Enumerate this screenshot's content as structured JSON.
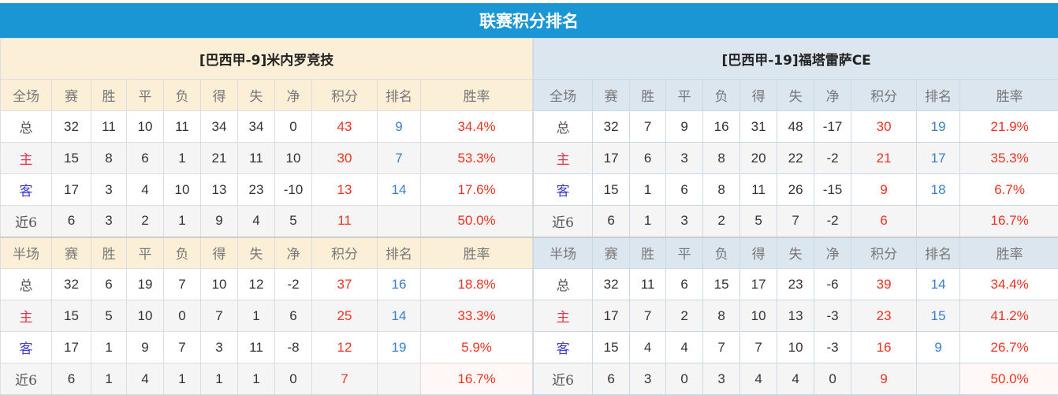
{
  "title": "联赛积分排名",
  "columns_full": [
    "全场",
    "赛",
    "胜",
    "平",
    "负",
    "得",
    "失",
    "净",
    "积分",
    "排名",
    "胜率"
  ],
  "columns_half": [
    "半场",
    "赛",
    "胜",
    "平",
    "负",
    "得",
    "失",
    "净",
    "积分",
    "排名",
    "胜率"
  ],
  "colors": {
    "title_bg": "#1a96d4",
    "points": "#ee3322",
    "rank": "#3a7fc8",
    "home_label": "#e8334a",
    "away_label": "#3b3bd6"
  },
  "teams": [
    {
      "name": "[巴西甲-9]米内罗竞技",
      "full": [
        [
          "总",
          "32",
          "11",
          "10",
          "11",
          "34",
          "34",
          "0",
          "43",
          "9",
          "34.4%"
        ],
        [
          "主",
          "15",
          "8",
          "6",
          "1",
          "21",
          "11",
          "10",
          "30",
          "7",
          "53.3%"
        ],
        [
          "客",
          "17",
          "3",
          "4",
          "10",
          "13",
          "23",
          "-10",
          "13",
          "14",
          "17.6%"
        ],
        [
          "近6",
          "6",
          "3",
          "2",
          "1",
          "9",
          "4",
          "5",
          "11",
          "",
          "50.0%"
        ]
      ],
      "half": [
        [
          "总",
          "32",
          "6",
          "19",
          "7",
          "10",
          "12",
          "-2",
          "37",
          "16",
          "18.8%"
        ],
        [
          "主",
          "15",
          "5",
          "10",
          "0",
          "7",
          "1",
          "6",
          "25",
          "14",
          "33.3%"
        ],
        [
          "客",
          "17",
          "1",
          "9",
          "7",
          "3",
          "11",
          "-8",
          "12",
          "19",
          "5.9%"
        ],
        [
          "近6",
          "6",
          "1",
          "4",
          "1",
          "1",
          "1",
          "0",
          "7",
          "",
          "16.7%"
        ]
      ]
    },
    {
      "name": "[巴西甲-19]福塔雷萨CE",
      "full": [
        [
          "总",
          "32",
          "7",
          "9",
          "16",
          "31",
          "48",
          "-17",
          "30",
          "19",
          "21.9%"
        ],
        [
          "主",
          "17",
          "6",
          "3",
          "8",
          "20",
          "22",
          "-2",
          "21",
          "17",
          "35.3%"
        ],
        [
          "客",
          "15",
          "1",
          "6",
          "8",
          "11",
          "26",
          "-15",
          "9",
          "18",
          "6.7%"
        ],
        [
          "近6",
          "6",
          "1",
          "3",
          "2",
          "5",
          "7",
          "-2",
          "6",
          "",
          "16.7%"
        ]
      ],
      "half": [
        [
          "总",
          "32",
          "11",
          "6",
          "15",
          "17",
          "23",
          "-6",
          "39",
          "14",
          "34.4%"
        ],
        [
          "主",
          "17",
          "7",
          "2",
          "8",
          "10",
          "13",
          "-3",
          "23",
          "15",
          "41.2%"
        ],
        [
          "客",
          "15",
          "4",
          "4",
          "7",
          "7",
          "10",
          "-3",
          "16",
          "9",
          "26.7%"
        ],
        [
          "近6",
          "6",
          "3",
          "0",
          "3",
          "4",
          "4",
          "0",
          "9",
          "",
          "50.0%"
        ]
      ]
    }
  ]
}
